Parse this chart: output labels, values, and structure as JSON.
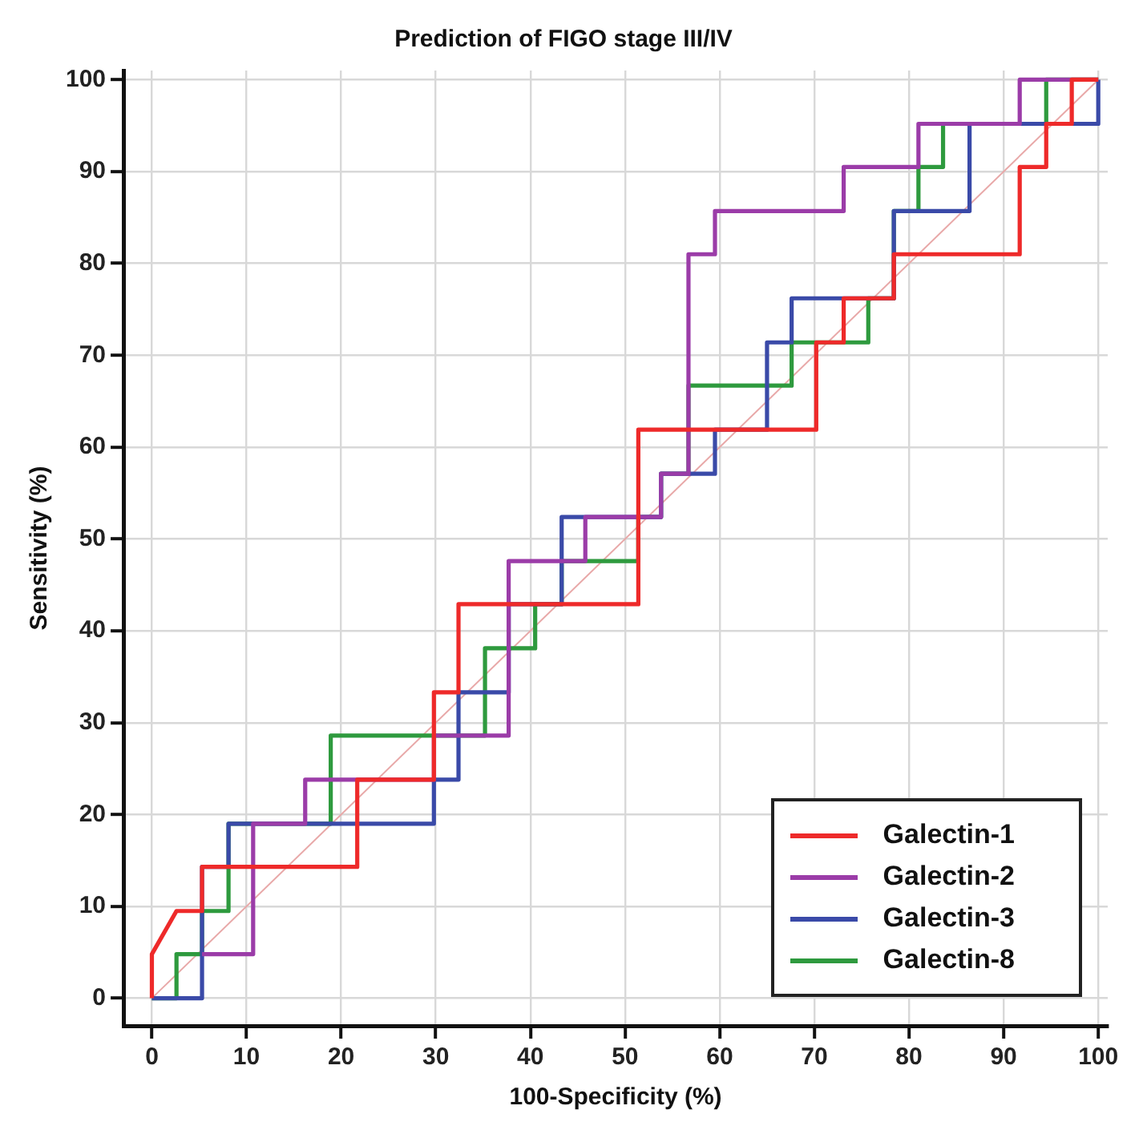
{
  "chart_data": {
    "type": "line",
    "title": "Prediction of FIGO stage III/IV",
    "xlabel": "100-Specificity (%)",
    "ylabel": "Sensitivity (%)",
    "xlim": [
      -3,
      101
    ],
    "ylim": [
      -3,
      101
    ],
    "xticks": [
      0,
      10,
      20,
      30,
      40,
      50,
      60,
      70,
      80,
      90,
      100
    ],
    "yticks": [
      0,
      10,
      20,
      30,
      40,
      50,
      60,
      70,
      80,
      90,
      100
    ],
    "grid": true,
    "legend": "bottom right",
    "marker": "none",
    "line_style": "solid",
    "series": [
      {
        "name": "Galectin-1",
        "color": "#ee2a2a",
        "x": [
          0,
          0,
          2.6,
          5.3,
          5.3,
          21.7,
          21.7,
          29.8,
          29.8,
          32.4,
          32.4,
          51.4,
          51.4,
          70.2,
          70.2,
          73.1,
          73.1,
          78.4,
          78.4,
          91.7,
          91.7,
          94.5,
          94.5,
          97.2,
          97.2,
          100
        ],
        "values": [
          0,
          4.8,
          9.5,
          9.5,
          14.3,
          14.3,
          23.8,
          23.8,
          33.3,
          33.3,
          42.9,
          42.9,
          61.9,
          61.9,
          71.4,
          71.4,
          76.2,
          76.2,
          81,
          81,
          90.5,
          90.5,
          95.2,
          95.2,
          100,
          100
        ]
      },
      {
        "name": "Galectin-2",
        "color": "#9b3ca8",
        "x": [
          5.3,
          10.7,
          10.7,
          16.2,
          16.2,
          29.8,
          29.8,
          37.7,
          37.7,
          45.8,
          45.8,
          53.8,
          53.8,
          56.7,
          56.7,
          59.5,
          59.5,
          73.1,
          73.1,
          81,
          81,
          91.7,
          91.7,
          100
        ],
        "values": [
          4.8,
          4.8,
          19,
          19,
          23.8,
          23.8,
          28.6,
          28.6,
          47.6,
          47.6,
          52.4,
          52.4,
          57.1,
          57.1,
          81,
          81,
          85.7,
          85.7,
          90.5,
          90.5,
          95.2,
          95.2,
          100,
          100
        ]
      },
      {
        "name": "Galectin-3",
        "color": "#3a4aa8",
        "x": [
          0,
          5.3,
          5.3,
          8.1,
          8.1,
          29.8,
          29.8,
          32.4,
          32.4,
          35.2,
          35.2,
          37.7,
          37.7,
          43.3,
          43.3,
          53.8,
          53.8,
          59.5,
          59.5,
          65,
          65,
          67.6,
          67.6,
          78.4,
          78.4,
          86.4,
          86.4,
          100,
          100
        ],
        "values": [
          0,
          0,
          14.3,
          14.3,
          19,
          19,
          23.8,
          23.8,
          33.3,
          33.3,
          33.3,
          33.3,
          42.9,
          42.9,
          52.4,
          52.4,
          57.1,
          57.1,
          61.9,
          61.9,
          71.4,
          71.4,
          76.2,
          76.2,
          85.7,
          85.7,
          95.2,
          95.2,
          100
        ]
      },
      {
        "name": "Galectin-8",
        "color": "#2e9a3e",
        "x": [
          0,
          2.6,
          2.6,
          5.3,
          5.3,
          8.1,
          8.1,
          18.9,
          18.9,
          35.2,
          35.2,
          40.5,
          40.5,
          43.3,
          43.3,
          51.4,
          51.4,
          53.8,
          53.8,
          56.7,
          56.7,
          67.6,
          67.6,
          75.7,
          75.7,
          78.4,
          78.4,
          81,
          81,
          83.6,
          83.6,
          94.5,
          94.5,
          100
        ],
        "values": [
          0,
          0,
          4.8,
          4.8,
          9.5,
          9.5,
          19,
          19,
          28.6,
          28.6,
          38.1,
          38.1,
          42.9,
          42.9,
          47.6,
          47.6,
          52.4,
          52.4,
          57.1,
          57.1,
          66.7,
          66.7,
          71.4,
          71.4,
          76.2,
          76.2,
          85.7,
          85.7,
          90.5,
          90.5,
          95.2,
          95.2,
          100,
          100
        ]
      },
      {
        "color": "#e8a8a8",
        "x": [
          0,
          100
        ],
        "values": [
          0,
          100
        ]
      }
    ]
  }
}
